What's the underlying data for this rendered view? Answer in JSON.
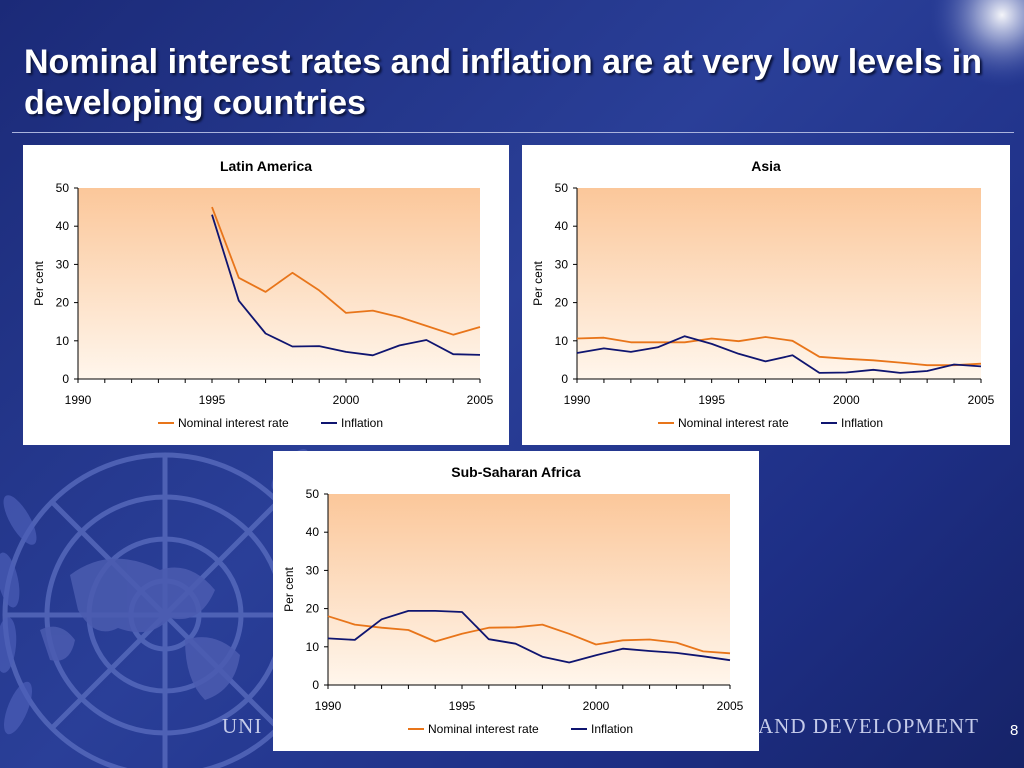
{
  "slide": {
    "title": "Nominal interest rates and inflation are at very low levels in developing countries",
    "footer_left": "UNI",
    "footer_right": "AND DEVELOPMENT",
    "page_number": "8"
  },
  "colors": {
    "nominal": "#e8751a",
    "inflation": "#0f1570",
    "plot_top": "#fbc79a",
    "plot_bottom": "#fff6ec"
  },
  "chart_data": [
    {
      "type": "line",
      "title": "Latin America",
      "ylabel": "Per cent",
      "xlabel": "",
      "xlim": [
        1990,
        2005
      ],
      "ylim": [
        0,
        50
      ],
      "x_ticks": [
        1990,
        1995,
        2000,
        2005
      ],
      "y_ticks": [
        0,
        10,
        20,
        30,
        40,
        50
      ],
      "legend": "bottom-center",
      "grid": false,
      "series": [
        {
          "name": "Nominal interest rate",
          "x": [
            1995,
            1996,
            1997,
            1998,
            1999,
            2000,
            2001,
            2002,
            2003,
            2004,
            2005
          ],
          "values": [
            45,
            26.5,
            22.8,
            27.8,
            23.2,
            17.3,
            17.9,
            16.2,
            13.9,
            11.6,
            13.6
          ]
        },
        {
          "name": "Inflation",
          "x": [
            1995,
            1996,
            1997,
            1998,
            1999,
            2000,
            2001,
            2002,
            2003,
            2004,
            2005
          ],
          "values": [
            43,
            20.5,
            11.9,
            8.5,
            8.6,
            7.1,
            6.2,
            8.8,
            10.2,
            6.5,
            6.3
          ]
        }
      ]
    },
    {
      "type": "line",
      "title": "Asia",
      "ylabel": "Per cent",
      "xlabel": "",
      "xlim": [
        1990,
        2005
      ],
      "ylim": [
        0,
        50
      ],
      "x_ticks": [
        1990,
        1995,
        2000,
        2005
      ],
      "y_ticks": [
        0,
        10,
        20,
        30,
        40,
        50
      ],
      "legend": "bottom-center",
      "grid": false,
      "series": [
        {
          "name": "Nominal interest rate",
          "x": [
            1990,
            1991,
            1992,
            1993,
            1994,
            1995,
            1996,
            1997,
            1998,
            1999,
            2000,
            2001,
            2002,
            2003,
            2004,
            2005
          ],
          "values": [
            10.6,
            10.8,
            9.6,
            9.6,
            9.6,
            10.6,
            9.9,
            11.0,
            10.0,
            5.8,
            5.3,
            4.9,
            4.3,
            3.6,
            3.6,
            4.0
          ]
        },
        {
          "name": "Inflation",
          "x": [
            1990,
            1991,
            1992,
            1993,
            1994,
            1995,
            1996,
            1997,
            1998,
            1999,
            2000,
            2001,
            2002,
            2003,
            2004,
            2005
          ],
          "values": [
            6.8,
            8.0,
            7.1,
            8.3,
            11.2,
            9.2,
            6.6,
            4.6,
            6.2,
            1.6,
            1.7,
            2.4,
            1.6,
            2.1,
            3.8,
            3.3
          ]
        }
      ]
    },
    {
      "type": "line",
      "title": "Sub-Saharan Africa",
      "ylabel": "Per cent",
      "xlabel": "",
      "xlim": [
        1990,
        2005
      ],
      "ylim": [
        0,
        50
      ],
      "x_ticks": [
        1990,
        1995,
        2000,
        2005
      ],
      "y_ticks": [
        0,
        10,
        20,
        30,
        40,
        50
      ],
      "legend": "bottom-center",
      "grid": false,
      "series": [
        {
          "name": "Nominal interest rate",
          "x": [
            1990,
            1991,
            1992,
            1993,
            1994,
            1995,
            1996,
            1997,
            1998,
            1999,
            2000,
            2001,
            2002,
            2003,
            2004,
            2005
          ],
          "values": [
            18,
            15.8,
            15,
            14.4,
            11.4,
            13.4,
            15,
            15.1,
            15.8,
            13.4,
            10.6,
            11.7,
            11.9,
            11.1,
            8.8,
            8.3
          ]
        },
        {
          "name": "Inflation",
          "x": [
            1990,
            1991,
            1992,
            1993,
            1994,
            1995,
            1996,
            1997,
            1998,
            1999,
            2000,
            2001,
            2002,
            2003,
            2004,
            2005
          ],
          "values": [
            12.2,
            11.8,
            17.2,
            19.4,
            19.4,
            19.1,
            12.0,
            10.8,
            7.4,
            5.9,
            7.8,
            9.5,
            8.9,
            8.4,
            7.5,
            6.5
          ]
        }
      ]
    }
  ]
}
